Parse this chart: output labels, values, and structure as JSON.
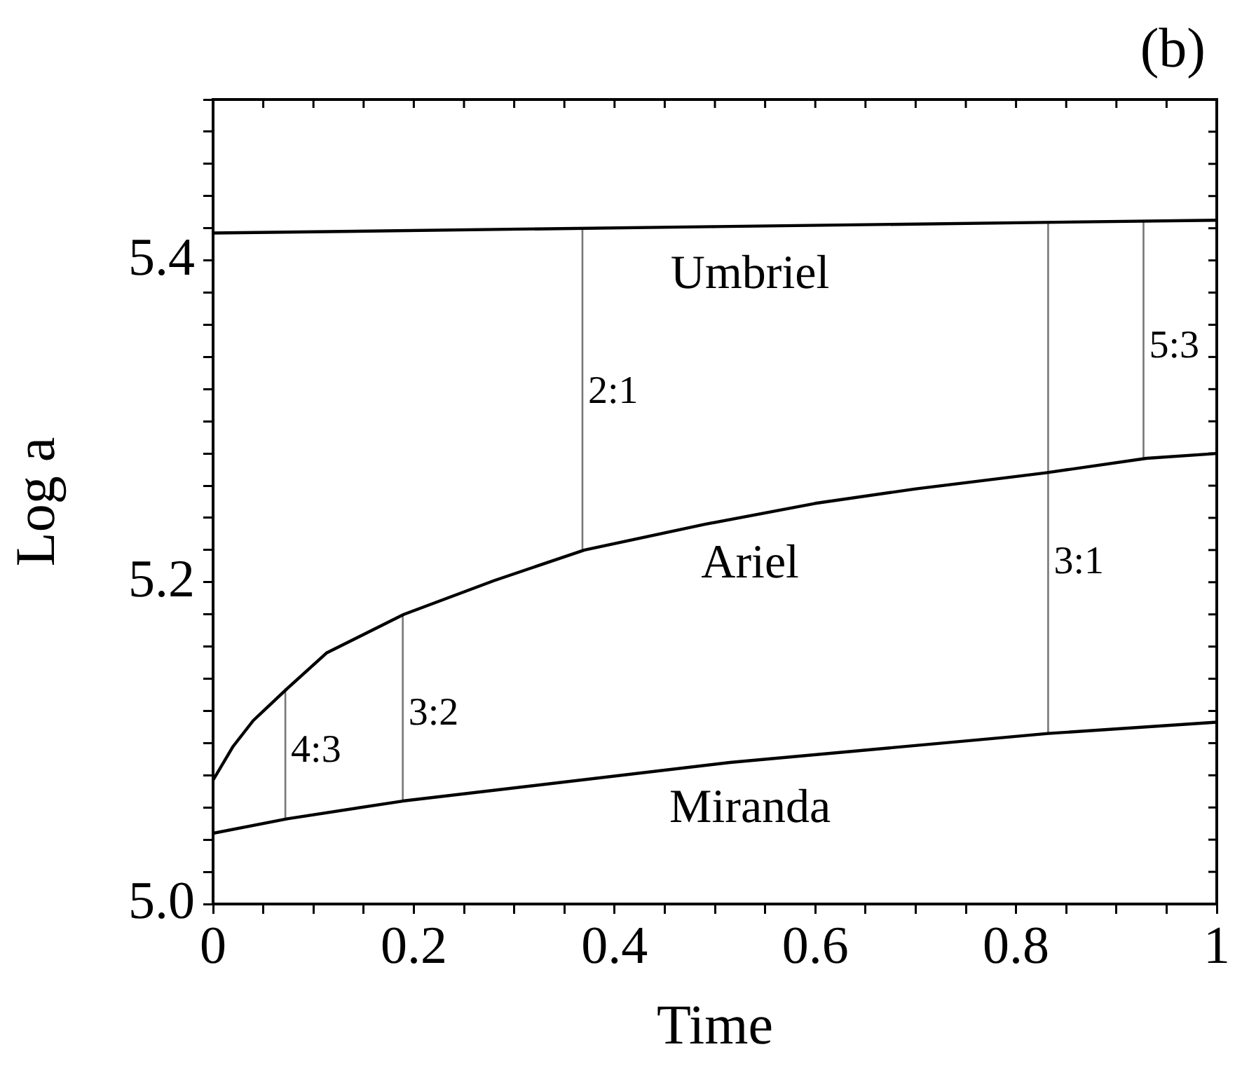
{
  "chart_data": {
    "type": "line",
    "xlabel": "Time",
    "ylabel": "Log a",
    "xlim": [
      0,
      1
    ],
    "ylim": [
      5.0,
      5.5
    ],
    "xticks": [
      0,
      {
        "value": 0.05,
        "label": null
      },
      {
        "value": 0.1,
        "label": null
      },
      {
        "value": 0.15,
        "label": null
      },
      0.2,
      {
        "value": 0.25,
        "label": null
      },
      {
        "value": 0.3,
        "label": null
      },
      {
        "value": 0.35,
        "label": null
      },
      0.4,
      {
        "value": 0.45,
        "label": null
      },
      {
        "value": 0.5,
        "label": null
      },
      {
        "value": 0.55,
        "label": null
      },
      0.6,
      {
        "value": 0.65,
        "label": null
      },
      {
        "value": 0.7,
        "label": null
      },
      {
        "value": 0.75,
        "label": null
      },
      0.8,
      {
        "value": 0.85,
        "label": null
      },
      {
        "value": 0.9,
        "label": null
      },
      {
        "value": 0.95,
        "label": null
      },
      1
    ],
    "yticks": [
      {
        "value": 5,
        "label": "5.0"
      },
      {
        "value": 5.02,
        "label": null
      },
      {
        "value": 5.04,
        "label": null
      },
      {
        "value": 5.06,
        "label": null
      },
      {
        "value": 5.08,
        "label": null
      },
      {
        "value": 5.1,
        "label": null
      },
      {
        "value": 5.12,
        "label": null
      },
      {
        "value": 5.14,
        "label": null
      },
      {
        "value": 5.16,
        "label": null
      },
      {
        "value": 5.18,
        "label": null
      },
      {
        "value": 5.2,
        "label": "5.2"
      },
      {
        "value": 5.22,
        "label": null
      },
      {
        "value": 5.24,
        "label": null
      },
      {
        "value": 5.26,
        "label": null
      },
      {
        "value": 5.28,
        "label": null
      },
      {
        "value": 5.3,
        "label": null
      },
      {
        "value": 5.32,
        "label": null
      },
      {
        "value": 5.34,
        "label": null
      },
      {
        "value": 5.36,
        "label": null
      },
      {
        "value": 5.38,
        "label": null
      },
      {
        "value": 5.4,
        "label": "5.4"
      },
      {
        "value": 5.42,
        "label": null
      },
      {
        "value": 5.44,
        "label": null
      },
      {
        "value": 5.46,
        "label": null
      },
      {
        "value": 5.48,
        "label": null
      },
      {
        "value": 5.5,
        "label": null
      }
    ],
    "legend": false,
    "series": [
      {
        "name": "Umbriel",
        "color": "#000000",
        "x": [
          0,
          0.5,
          1
        ],
        "values": [
          5.417,
          5.421,
          5.425
        ]
      },
      {
        "name": "Ariel",
        "color": "#000000",
        "x": [
          0,
          0.02,
          0.04,
          0.074,
          0.113,
          0.19,
          0.28,
          0.37,
          0.49,
          0.6,
          0.7,
          0.83,
          0.93,
          1
        ],
        "values": [
          5.077,
          5.098,
          5.114,
          5.134,
          5.156,
          5.18,
          5.201,
          5.22,
          5.236,
          5.249,
          5.258,
          5.268,
          5.277,
          5.28
        ]
      },
      {
        "name": "Miranda",
        "color": "#000000",
        "x": [
          0,
          0.074,
          0.189,
          0.515,
          0.832,
          1
        ],
        "values": [
          5.044,
          5.053,
          5.064,
          5.088,
          5.106,
          5.113
        ]
      },
      {
        "color": "#777777",
        "x": [
          0.072,
          0.072
        ],
        "values": [
          5.053,
          5.134
        ]
      },
      {
        "color": "#777777",
        "x": [
          0.189,
          0.189
        ],
        "values": [
          5.064,
          5.18
        ]
      },
      {
        "color": "#777777",
        "x": [
          0.368,
          0.368
        ],
        "values": [
          5.22,
          5.42
        ]
      },
      {
        "color": "#777777",
        "x": [
          0.832,
          0.832
        ],
        "values": [
          5.106,
          5.424
        ]
      },
      {
        "color": "#777777",
        "x": [
          0.927,
          0.927
        ],
        "values": [
          5.277,
          5.425
        ]
      }
    ],
    "annotations": [
      "(b)",
      {
        "text": "4:3",
        "x": 0.072,
        "y": 5.095
      },
      {
        "text": "3:2",
        "x": 0.189,
        "y": 5.118
      },
      {
        "text": "2:1",
        "x": 0.368,
        "y": 5.318
      },
      {
        "text": "3:1",
        "x": 0.832,
        "y": 5.212
      },
      {
        "text": "5:3",
        "x": 0.927,
        "y": 5.346
      }
    ]
  }
}
